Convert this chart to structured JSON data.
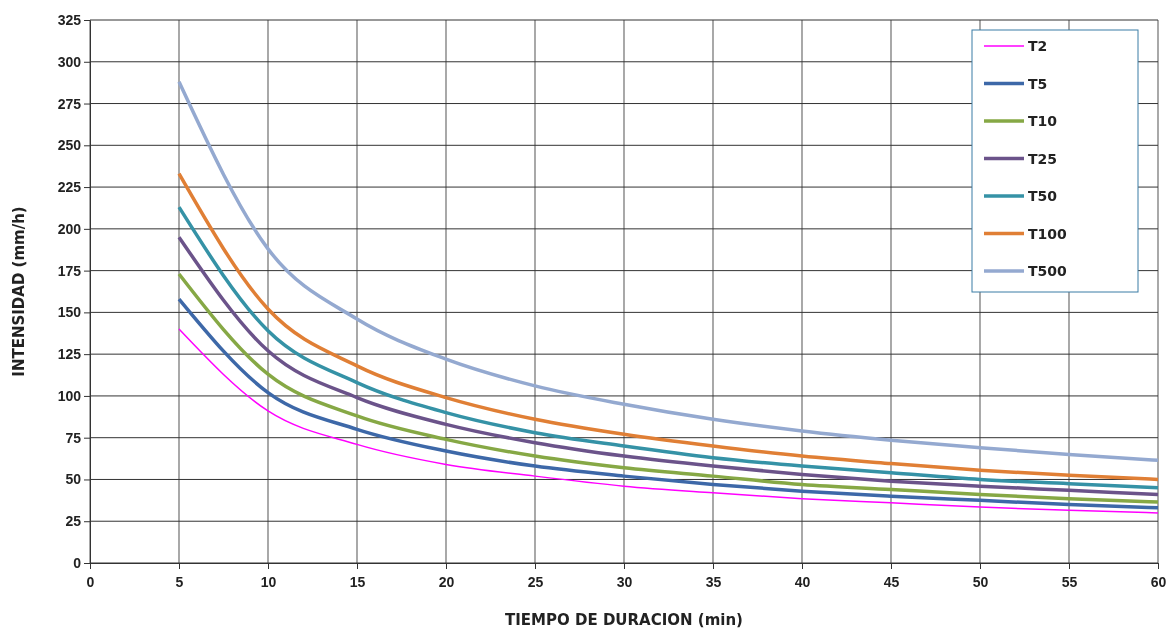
{
  "chart_data": {
    "type": "line",
    "xlabel": "TIEMPO DE DURACION (min)",
    "ylabel": "INTENSIDAD (mm/h)",
    "x": [
      5,
      10,
      15,
      20,
      25,
      30,
      35,
      40,
      45,
      50,
      55,
      60
    ],
    "series": [
      {
        "name": "T2",
        "color": "#ff00ff",
        "values": [
          140,
          91,
          71,
          59,
          52,
          46,
          42,
          38.5,
          36,
          33.5,
          31.5,
          30
        ]
      },
      {
        "name": "T5",
        "color": "#3d68a8",
        "values": [
          158,
          102,
          80,
          67,
          58,
          52,
          47,
          43,
          40,
          37.5,
          35,
          33
        ]
      },
      {
        "name": "T10",
        "color": "#86a845",
        "values": [
          173,
          113,
          88,
          74,
          64,
          57,
          52,
          47,
          44,
          41,
          38.5,
          36.5
        ]
      },
      {
        "name": "T25",
        "color": "#6b538a",
        "values": [
          195,
          127,
          99,
          83,
          72,
          64,
          58,
          53,
          49,
          46,
          43.5,
          41
        ]
      },
      {
        "name": "T50",
        "color": "#3592a6",
        "values": [
          213,
          139,
          108,
          90,
          78,
          70,
          63,
          58,
          54,
          50,
          47.5,
          45
        ]
      },
      {
        "name": "T100",
        "color": "#e07f35",
        "values": [
          233,
          152,
          118,
          99,
          86,
          77,
          70,
          64,
          59.5,
          55.5,
          52.5,
          50
        ]
      },
      {
        "name": "T500",
        "color": "#94a9d0",
        "values": [
          288,
          188,
          146,
          122,
          106,
          95,
          86,
          79,
          73.5,
          69,
          65,
          61.5
        ]
      }
    ],
    "xlim": [
      0,
      60
    ],
    "xticks": [
      0,
      5,
      10,
      15,
      20,
      25,
      30,
      35,
      40,
      45,
      50,
      55,
      60
    ],
    "ylim": [
      0,
      325
    ],
    "yticks": [
      0,
      25,
      50,
      75,
      100,
      125,
      150,
      175,
      200,
      225,
      250,
      275,
      300,
      325
    ],
    "grid": true,
    "legend": "top right",
    "marker": "none",
    "line_style": "solid"
  }
}
